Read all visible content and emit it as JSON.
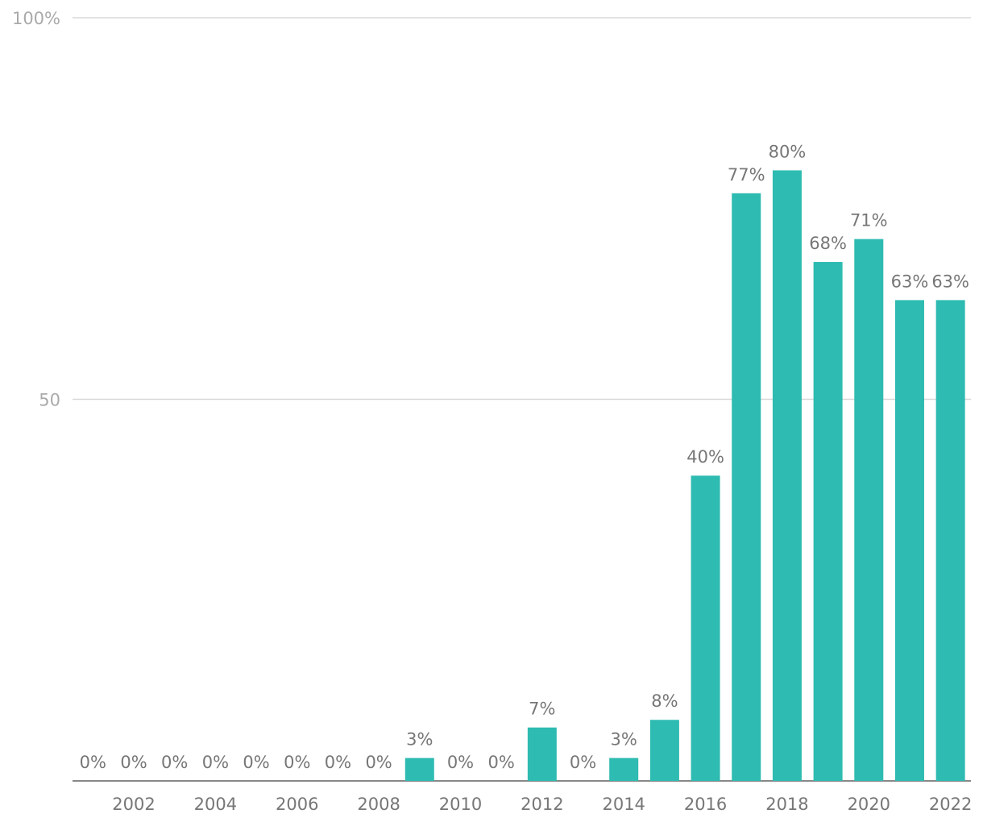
{
  "chart_data": {
    "type": "bar",
    "categories": [
      null,
      "2002",
      null,
      "2004",
      null,
      "2006",
      null,
      "2008",
      null,
      "2010",
      null,
      "2012",
      null,
      "2014",
      null,
      "2016",
      null,
      "2018",
      null,
      "2020",
      null,
      "2022"
    ],
    "values": [
      0,
      0,
      0,
      0,
      0,
      0,
      0,
      0,
      3,
      0,
      0,
      7,
      0,
      3,
      8,
      40,
      77,
      80,
      68,
      71,
      63,
      63
    ],
    "value_labels": [
      "0%",
      "0%",
      "0%",
      "0%",
      "0%",
      "0%",
      "0%",
      "0%",
      "3%",
      "0%",
      "0%",
      "7%",
      "0%",
      "3%",
      "8%",
      "40%",
      "77%",
      "80%",
      "68%",
      "71%",
      "63%",
      "63%"
    ],
    "color": "#2ebbb1",
    "ylim": [
      0,
      100
    ],
    "yticks": [
      50,
      {
        "value": 100,
        "label": "100%"
      }
    ],
    "grid": true
  }
}
